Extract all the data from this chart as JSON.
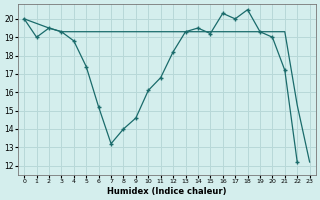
{
  "xlabel": "Humidex (Indice chaleur)",
  "bg_color": "#d4eeed",
  "grid_color": "#b8d8d8",
  "line_color": "#1a6b6b",
  "xlim": [
    -0.5,
    23.5
  ],
  "ylim": [
    11.5,
    20.8
  ],
  "xticks": [
    0,
    1,
    2,
    3,
    4,
    5,
    6,
    7,
    8,
    9,
    10,
    11,
    12,
    13,
    14,
    15,
    16,
    17,
    18,
    19,
    20,
    21,
    22,
    23
  ],
  "yticks": [
    12,
    13,
    14,
    15,
    16,
    17,
    18,
    19,
    20
  ],
  "series1_x": [
    0,
    1,
    2,
    3,
    4,
    5,
    6,
    7,
    8,
    9,
    10,
    11,
    12,
    13,
    14,
    15,
    16,
    17,
    18,
    19,
    20,
    21,
    22
  ],
  "series1_y": [
    20,
    19,
    19.5,
    19.3,
    18.8,
    17.4,
    15.2,
    13.2,
    14.0,
    14.6,
    16.1,
    16.8,
    18.2,
    19.3,
    19.5,
    19.2,
    20.3,
    20.0,
    20.5,
    19.3,
    19.0,
    17.2,
    12.2
  ],
  "series2_x": [
    0,
    2,
    3,
    10,
    14,
    19,
    21,
    22,
    23
  ],
  "series2_y": [
    20,
    19.5,
    19.3,
    19.3,
    19.3,
    19.3,
    19.3,
    15.3,
    12.2
  ]
}
